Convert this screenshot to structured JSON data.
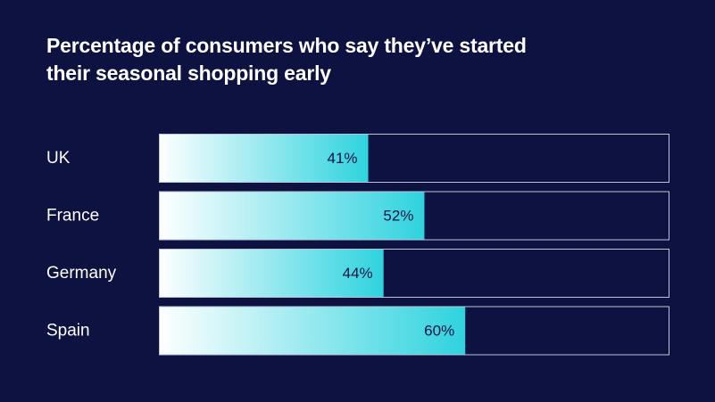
{
  "chart_data": {
    "type": "bar",
    "orientation": "horizontal",
    "title": [
      "Percentage of consumers who say they’ve started",
      "their seasonal shopping early"
    ],
    "categories": [
      "UK",
      "France",
      "Germany",
      "Spain"
    ],
    "values": [
      41,
      52,
      44,
      60
    ],
    "value_labels": [
      "41%",
      "52%",
      "44%",
      "60%"
    ],
    "xlim": [
      0,
      100
    ],
    "unit": "%",
    "grid": false,
    "legend": "none",
    "colors": {
      "background": "#0e1240",
      "bar_start": "#ffffff",
      "bar_end": "#2ed3df",
      "track_border": "#b9c4d9",
      "text": "#ffffff",
      "value_text": "#0e1240"
    }
  }
}
